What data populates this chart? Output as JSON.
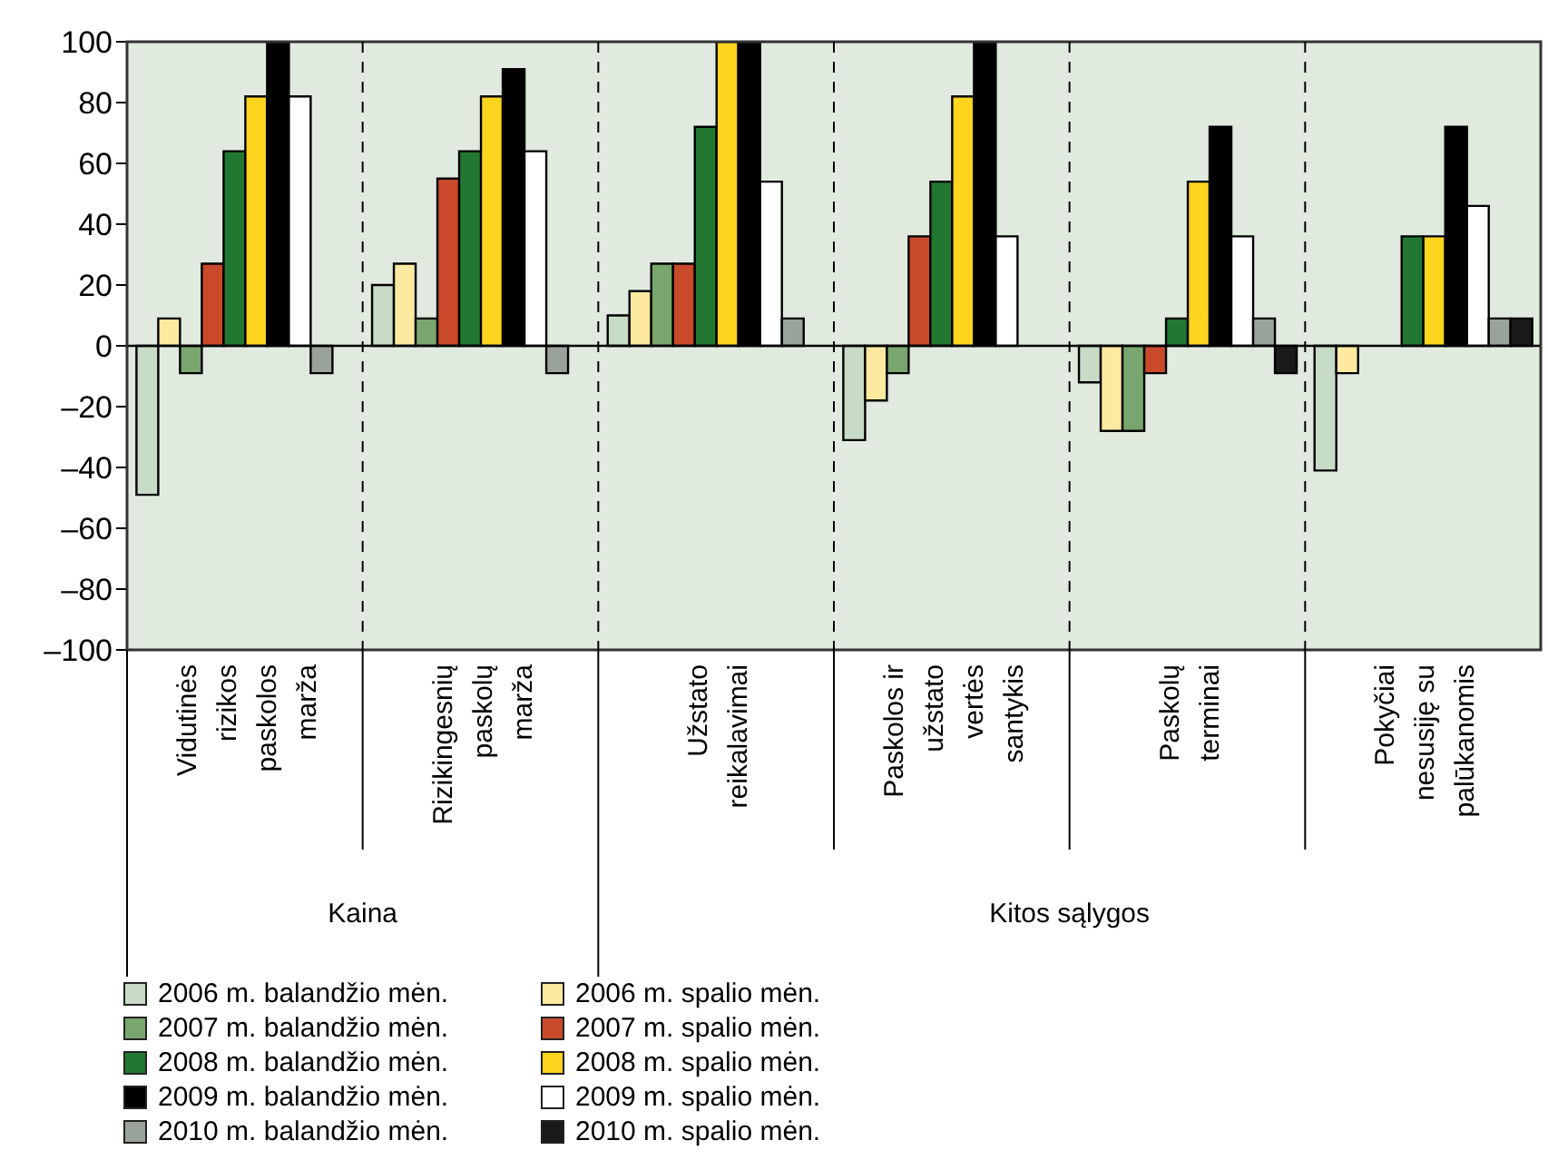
{
  "chart_data": {
    "type": "bar",
    "categories": [
      "Vidutinės rizikos paskolos marža",
      "Rizikingesnių paskolų marža",
      "Užstato reikalavimai",
      "Paskolos ir užstato vertės santykis",
      "Paskolų terminai",
      "Pokyčiai nesusiję su palūkanomis"
    ],
    "series": [
      {
        "name": "2006 m. balandžio mėn.",
        "color": "#c8dbc6",
        "values": [
          -49,
          20,
          10,
          -31,
          -12,
          -41
        ]
      },
      {
        "name": "2006 m. spalio mėn.",
        "color": "#fde9a0",
        "values": [
          9,
          27,
          18,
          -18,
          -28,
          -9
        ]
      },
      {
        "name": "2007 m. balandžio mėn.",
        "color": "#79a66f",
        "values": [
          -9,
          9,
          27,
          -9,
          -28,
          null
        ]
      },
      {
        "name": "2007 m. spalio mėn.",
        "color": "#c94a2b",
        "values": [
          27,
          55,
          27,
          36,
          -9,
          null
        ]
      },
      {
        "name": "2008 m. balandžio mėn.",
        "color": "#237831",
        "values": [
          64,
          64,
          72,
          54,
          9,
          36
        ]
      },
      {
        "name": "2008 m. spalio mėn.",
        "color": "#fdd51f",
        "values": [
          82,
          82,
          100,
          82,
          54,
          36
        ]
      },
      {
        "name": "2009 m. balandžio mėn.",
        "color": "#000000",
        "values": [
          100,
          91,
          100,
          100,
          72,
          72
        ]
      },
      {
        "name": "2009 m. spalio mėn.",
        "color": "#ffffff",
        "values": [
          82,
          64,
          54,
          36,
          36,
          46
        ]
      },
      {
        "name": "2010 m. balandžio mėn.",
        "color": "#9aa39a",
        "values": [
          -9,
          -9,
          9,
          null,
          9,
          9
        ]
      },
      {
        "name": "2010 m. spalio mėn.",
        "color": "#1a1a1a",
        "values": [
          null,
          null,
          null,
          null,
          -9,
          9
        ]
      }
    ],
    "ylim": [
      -100,
      100
    ],
    "yticks": [
      {
        "value": -100,
        "label": "–100"
      },
      {
        "value": -80,
        "label": "–80"
      },
      {
        "value": -60,
        "label": "–60"
      },
      {
        "value": -40,
        "label": "–40"
      },
      {
        "value": -20,
        "label": "–20"
      },
      0,
      20,
      40,
      60,
      80,
      100
    ],
    "ref_lines": [
      {
        "axis": "y",
        "value": 0,
        "color": "#000000"
      }
    ],
    "annotations": [
      "Kaina",
      "Kitos sąlygos"
    ],
    "legend": "bottom"
  }
}
